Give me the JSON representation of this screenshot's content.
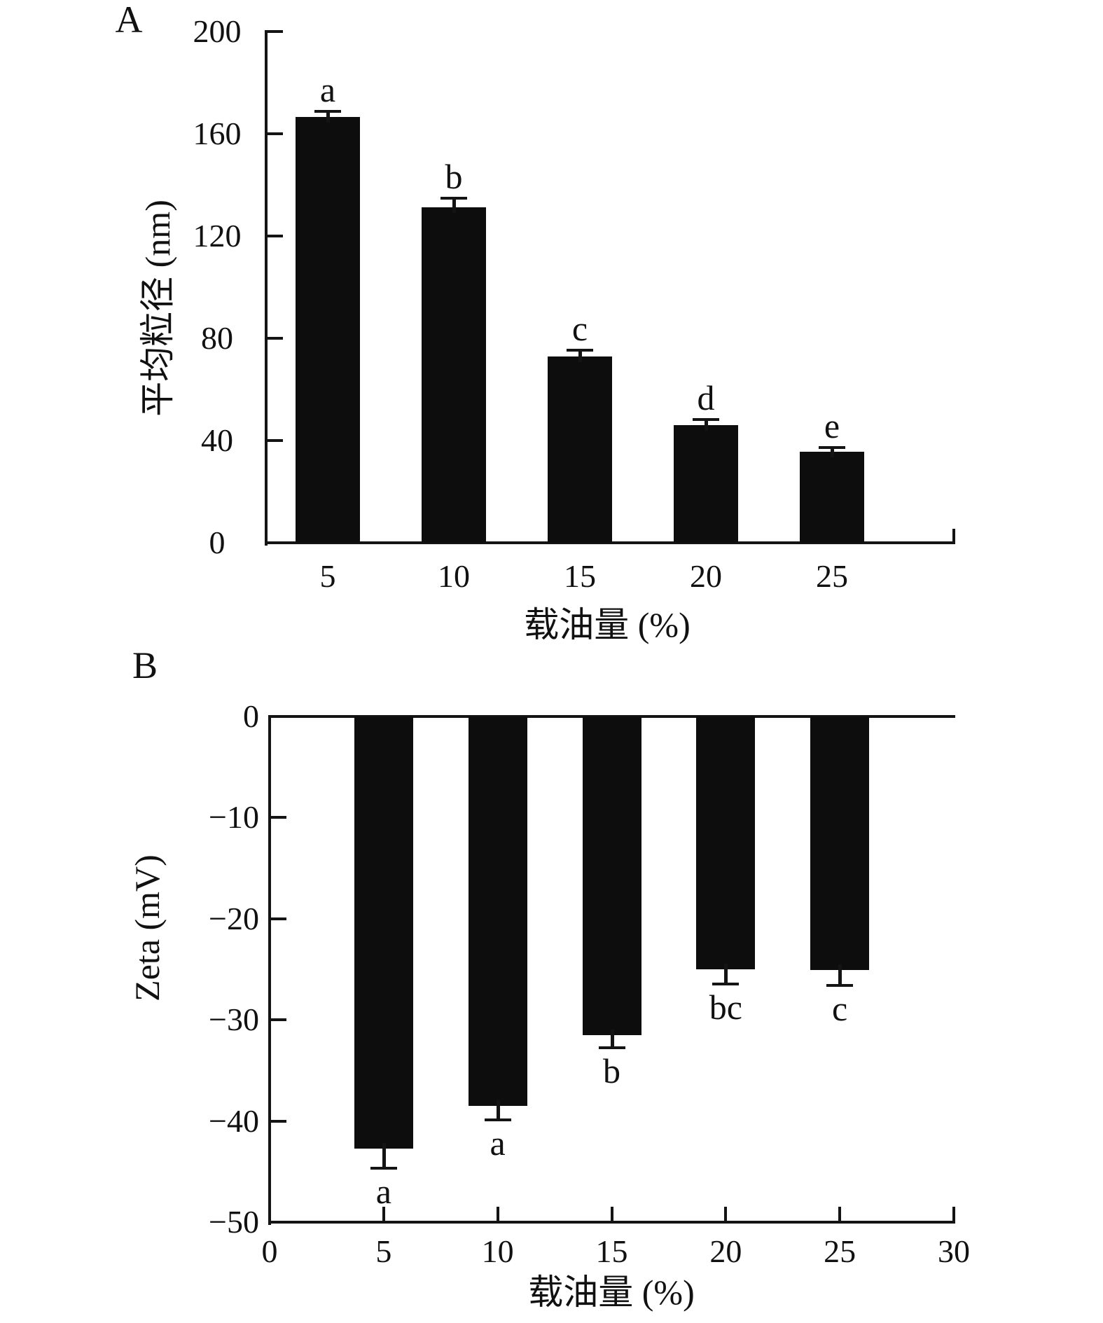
{
  "figure": {
    "panel_a_label": "A",
    "panel_b_label": "B"
  },
  "chart_data": [
    {
      "type": "bar",
      "panel": "A",
      "xlabel": "载油量 (%)",
      "ylabel": "平均粒径 (nm)",
      "categories": [
        5,
        10,
        15,
        20,
        25
      ],
      "values": [
        166.6,
        131.3,
        73,
        46,
        35.6
      ],
      "errors": [
        1.8,
        3.3,
        2.2,
        1.9,
        1.4
      ],
      "sig_letters": [
        "a",
        "b",
        "c",
        "d",
        "e"
      ],
      "ylim": [
        0,
        200
      ],
      "yticks": [
        0,
        40,
        80,
        120,
        160,
        200
      ],
      "xtick_labels": [
        "5",
        "10",
        "15",
        "20",
        "25"
      ],
      "grid": "off",
      "legend": "none",
      "bar_color": "#0d0d0d",
      "axis_color": "#141414"
    },
    {
      "type": "bar",
      "panel": "B",
      "xlabel": "载油量 (%)",
      "ylabel": "Zeta (mV)",
      "categories": [
        5,
        10,
        15,
        20,
        25
      ],
      "values": [
        -42.7,
        -38.5,
        -31.5,
        -25,
        -25.1
      ],
      "errors": [
        1.9,
        1.3,
        1.2,
        1.4,
        1.4
      ],
      "sig_letters": [
        "a",
        "a",
        "b",
        "bc",
        "c"
      ],
      "ylim": [
        -50,
        0
      ],
      "yticks": [
        0,
        -10,
        -20,
        -30,
        -40,
        -50
      ],
      "xticks": [
        0,
        5,
        10,
        15,
        20,
        25,
        30
      ],
      "xlim": [
        0,
        30
      ],
      "grid": "off",
      "legend": "none",
      "bar_color": "#0d0d0d",
      "axis_color": "#141414"
    }
  ]
}
